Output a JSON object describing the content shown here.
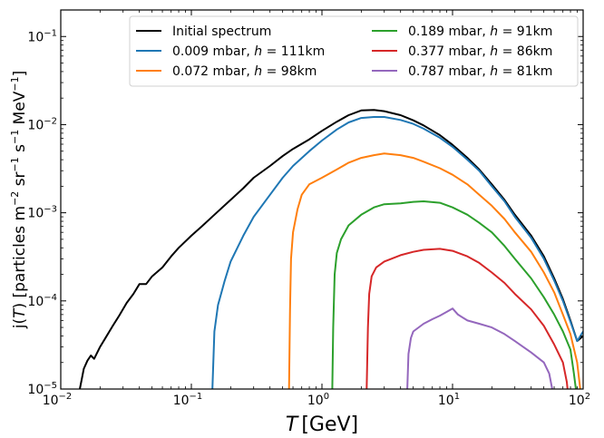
{
  "chart_data": {
    "type": "line",
    "xlabel_var": "T",
    "xlabel_unit": "[GeV]",
    "ylabel_prefix": "j(",
    "ylabel_var": "T",
    "ylabel_suffix": ") [particles m",
    "ylabel_sup1": "−2",
    "ylabel_mid1": " sr",
    "ylabel_sup2": "−1",
    "ylabel_mid2": " s",
    "ylabel_sup3": "−1",
    "ylabel_mid3": " MeV",
    "ylabel_sup4": "−1",
    "ylabel_end": "]",
    "x_scale": "log",
    "y_scale": "log",
    "xlim": [
      0.01,
      100
    ],
    "ylim": [
      1e-05,
      0.2
    ],
    "x_ticks": [
      {
        "value": 0.01,
        "base": "10",
        "exp": "−2"
      },
      {
        "value": 0.1,
        "base": "10",
        "exp": "−1"
      },
      {
        "value": 1,
        "base": "10",
        "exp": "0"
      },
      {
        "value": 10,
        "base": "10",
        "exp": "1"
      },
      {
        "value": 100,
        "base": "10",
        "exp": "2"
      }
    ],
    "y_ticks": [
      {
        "value": 1e-05,
        "base": "10",
        "exp": "−5"
      },
      {
        "value": 0.0001,
        "base": "10",
        "exp": "−4"
      },
      {
        "value": 0.001,
        "base": "10",
        "exp": "−3"
      },
      {
        "value": 0.01,
        "base": "10",
        "exp": "−2"
      },
      {
        "value": 0.1,
        "base": "10",
        "exp": "−1"
      }
    ],
    "grid": false,
    "legend_position": "top-right",
    "series": [
      {
        "name": "Initial spectrum",
        "color": "#000000",
        "points": [
          [
            0.014,
            1e-05
          ],
          [
            0.0145,
            1.3e-05
          ],
          [
            0.015,
            1.7e-05
          ],
          [
            0.016,
            2.1e-05
          ],
          [
            0.017,
            2.4e-05
          ],
          [
            0.018,
            2.2e-05
          ],
          [
            0.02,
            3e-05
          ],
          [
            0.022,
            3.8e-05
          ],
          [
            0.025,
            5.2e-05
          ],
          [
            0.028,
            6.8e-05
          ],
          [
            0.032,
            9.5e-05
          ],
          [
            0.036,
            0.00012
          ],
          [
            0.04,
            0.000155
          ],
          [
            0.045,
            0.000155
          ],
          [
            0.05,
            0.00019
          ],
          [
            0.06,
            0.00024
          ],
          [
            0.07,
            0.00032
          ],
          [
            0.08,
            0.0004
          ],
          [
            0.1,
            0.00055
          ],
          [
            0.12,
            0.0007
          ],
          [
            0.15,
            0.00095
          ],
          [
            0.2,
            0.0014
          ],
          [
            0.25,
            0.0019
          ],
          [
            0.3,
            0.0025
          ],
          [
            0.4,
            0.0034
          ],
          [
            0.5,
            0.0044
          ],
          [
            0.6,
            0.0053
          ],
          [
            0.8,
            0.0068
          ],
          [
            1.0,
            0.0085
          ],
          [
            1.3,
            0.0108
          ],
          [
            1.6,
            0.0128
          ],
          [
            2.0,
            0.0145
          ],
          [
            2.5,
            0.0147
          ],
          [
            3.0,
            0.0142
          ],
          [
            4.0,
            0.0128
          ],
          [
            5.0,
            0.0112
          ],
          [
            6.0,
            0.0098
          ],
          [
            8.0,
            0.0076
          ],
          [
            10,
            0.0059
          ],
          [
            13,
            0.0042
          ],
          [
            16,
            0.0031
          ],
          [
            20,
            0.0021
          ],
          [
            25,
            0.0014
          ],
          [
            30,
            0.00095
          ],
          [
            40,
            0.00055
          ],
          [
            50,
            0.00032
          ],
          [
            60,
            0.00018
          ],
          [
            70,
            0.000105
          ],
          [
            80,
            6e-05
          ],
          [
            90,
            3.5e-05
          ],
          [
            100,
            4e-05
          ]
        ]
      },
      {
        "name": "0.009 mbar, h = 111km",
        "label_text": "0.009 mbar, ",
        "label_var": "h",
        "label_rest": " = 111km",
        "color": "#1f77b4",
        "points": [
          [
            0.145,
            1e-05
          ],
          [
            0.15,
            4.5e-05
          ],
          [
            0.16,
            9e-05
          ],
          [
            0.18,
            0.00017
          ],
          [
            0.2,
            0.00028
          ],
          [
            0.25,
            0.00055
          ],
          [
            0.3,
            0.0009
          ],
          [
            0.4,
            0.0016
          ],
          [
            0.5,
            0.0025
          ],
          [
            0.6,
            0.0034
          ],
          [
            0.8,
            0.005
          ],
          [
            1.0,
            0.0066
          ],
          [
            1.3,
            0.0088
          ],
          [
            1.6,
            0.0106
          ],
          [
            2.0,
            0.0119
          ],
          [
            2.5,
            0.0122
          ],
          [
            3.0,
            0.0122
          ],
          [
            4.0,
            0.0113
          ],
          [
            5.0,
            0.0102
          ],
          [
            6.0,
            0.009
          ],
          [
            8.0,
            0.0071
          ],
          [
            10,
            0.0056
          ],
          [
            13,
            0.004
          ],
          [
            16,
            0.003
          ],
          [
            20,
            0.002
          ],
          [
            25,
            0.00135
          ],
          [
            30,
            0.0009
          ],
          [
            40,
            0.00052
          ],
          [
            50,
            0.0003
          ],
          [
            60,
            0.00017
          ],
          [
            70,
            0.0001
          ],
          [
            80,
            5.8e-05
          ],
          [
            90,
            3.5e-05
          ],
          [
            100,
            4.5e-05
          ]
        ]
      },
      {
        "name": "0.072 mbar, h = 98km",
        "label_text": "0.072 mbar, ",
        "label_var": "h",
        "label_rest": " = 98km",
        "color": "#ff7f0e",
        "points": [
          [
            0.56,
            1e-05
          ],
          [
            0.57,
            8e-05
          ],
          [
            0.58,
            0.0003
          ],
          [
            0.6,
            0.0006
          ],
          [
            0.65,
            0.0011
          ],
          [
            0.7,
            0.0016
          ],
          [
            0.8,
            0.0021
          ],
          [
            1.0,
            0.0025
          ],
          [
            1.3,
            0.0031
          ],
          [
            1.6,
            0.0037
          ],
          [
            2.0,
            0.0042
          ],
          [
            2.5,
            0.0045
          ],
          [
            3.0,
            0.0047
          ],
          [
            4.0,
            0.0045
          ],
          [
            5.0,
            0.0042
          ],
          [
            6.0,
            0.0038
          ],
          [
            8.0,
            0.0032
          ],
          [
            10,
            0.0027
          ],
          [
            13,
            0.0021
          ],
          [
            16,
            0.0016
          ],
          [
            20,
            0.0012
          ],
          [
            25,
            0.00085
          ],
          [
            30,
            0.0006
          ],
          [
            40,
            0.00036
          ],
          [
            50,
            0.00021
          ],
          [
            60,
            0.000125
          ],
          [
            70,
            7e-05
          ],
          [
            80,
            4.2e-05
          ],
          [
            90,
            2e-05
          ],
          [
            95,
            1e-05
          ]
        ]
      },
      {
        "name": "0.189 mbar, h = 91km",
        "label_text": "0.189 mbar, ",
        "label_var": "h",
        "label_rest": " = 91km",
        "color": "#2ca02c",
        "points": [
          [
            1.2,
            1e-05
          ],
          [
            1.22,
            5e-05
          ],
          [
            1.25,
            0.0002
          ],
          [
            1.3,
            0.00035
          ],
          [
            1.4,
            0.0005
          ],
          [
            1.6,
            0.00072
          ],
          [
            2.0,
            0.00095
          ],
          [
            2.5,
            0.00115
          ],
          [
            3.0,
            0.00125
          ],
          [
            4.0,
            0.00128
          ],
          [
            5.0,
            0.00133
          ],
          [
            6.0,
            0.00135
          ],
          [
            8.0,
            0.0013
          ],
          [
            10,
            0.00115
          ],
          [
            13,
            0.00095
          ],
          [
            16,
            0.00077
          ],
          [
            20,
            0.0006
          ],
          [
            25,
            0.00042
          ],
          [
            30,
            0.0003
          ],
          [
            40,
            0.00018
          ],
          [
            50,
            0.00011
          ],
          [
            60,
            7e-05
          ],
          [
            70,
            4.5e-05
          ],
          [
            80,
            2.8e-05
          ],
          [
            85,
            1.5e-05
          ],
          [
            88,
            1e-05
          ]
        ]
      },
      {
        "name": "0.377 mbar, h = 86km",
        "label_text": "0.377 mbar, ",
        "label_var": "h",
        "label_rest": " = 86km",
        "color": "#d62728",
        "points": [
          [
            2.2,
            1e-05
          ],
          [
            2.25,
            5e-05
          ],
          [
            2.3,
            0.00012
          ],
          [
            2.4,
            0.00019
          ],
          [
            2.6,
            0.00024
          ],
          [
            3.0,
            0.00028
          ],
          [
            4.0,
            0.00033
          ],
          [
            5.0,
            0.00036
          ],
          [
            6.0,
            0.00038
          ],
          [
            8.0,
            0.00039
          ],
          [
            10,
            0.00037
          ],
          [
            13,
            0.00032
          ],
          [
            16,
            0.00027
          ],
          [
            20,
            0.00021
          ],
          [
            25,
            0.00016
          ],
          [
            30,
            0.00012
          ],
          [
            40,
            8e-05
          ],
          [
            50,
            5.2e-05
          ],
          [
            60,
            3.2e-05
          ],
          [
            70,
            2e-05
          ],
          [
            75,
            1.2e-05
          ],
          [
            76,
            1e-05
          ]
        ]
      },
      {
        "name": "0.787 mbar, h = 81km",
        "label_text": "0.787 mbar, ",
        "label_var": "h",
        "label_rest": " = 81km",
        "color": "#9467bd",
        "points": [
          [
            4.5,
            1e-05
          ],
          [
            4.6,
            2.5e-05
          ],
          [
            4.8,
            3.8e-05
          ],
          [
            5.0,
            4.5e-05
          ],
          [
            6.0,
            5.5e-05
          ],
          [
            7.0,
            6.2e-05
          ],
          [
            8.0,
            6.8e-05
          ],
          [
            9.0,
            7.5e-05
          ],
          [
            10,
            8.2e-05
          ],
          [
            11,
            7e-05
          ],
          [
            13,
            6e-05
          ],
          [
            16,
            5.5e-05
          ],
          [
            20,
            5e-05
          ],
          [
            25,
            4.2e-05
          ],
          [
            30,
            3.5e-05
          ],
          [
            40,
            2.6e-05
          ],
          [
            50,
            2e-05
          ],
          [
            55,
            1.5e-05
          ],
          [
            58,
            1e-05
          ]
        ]
      }
    ]
  }
}
